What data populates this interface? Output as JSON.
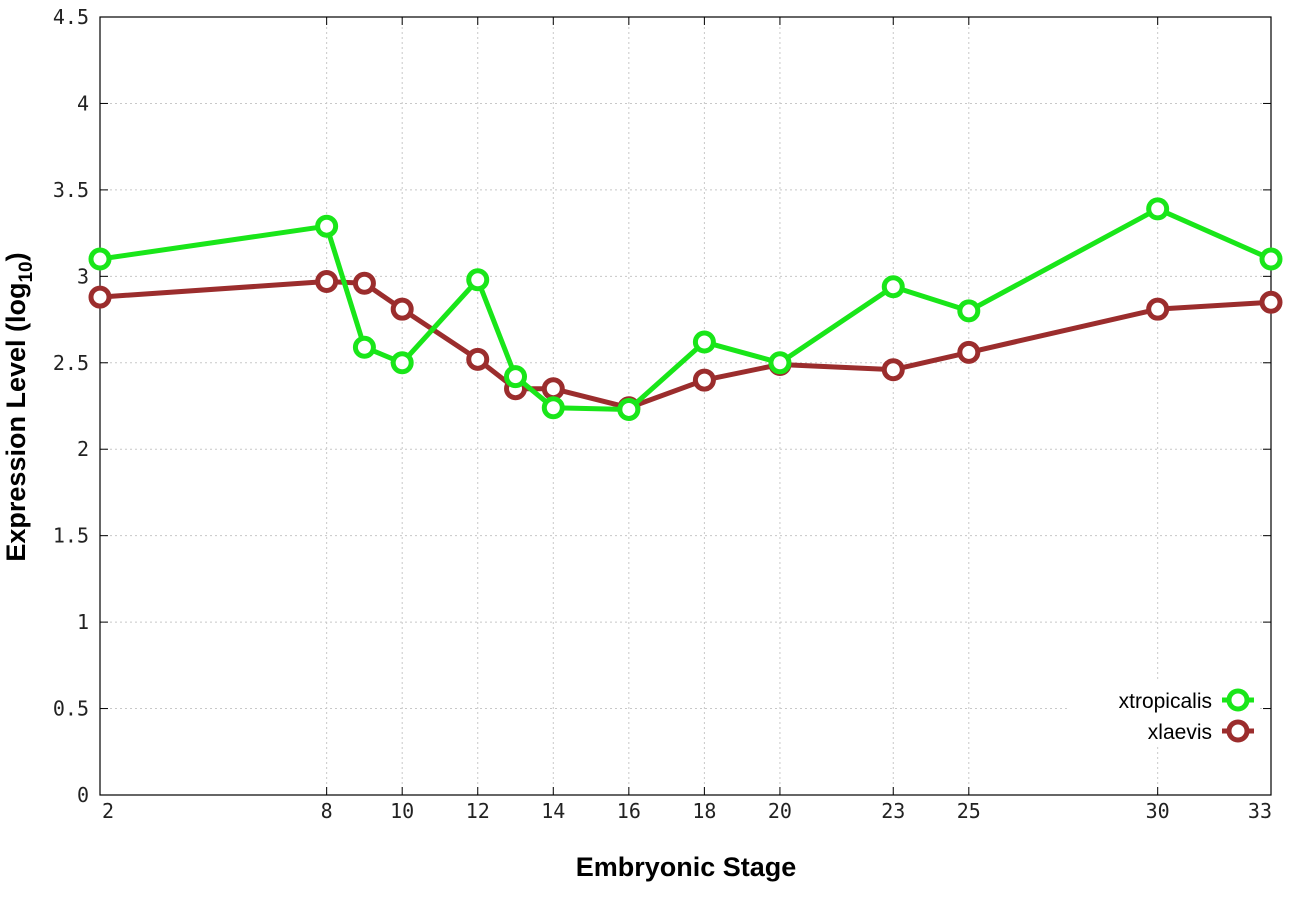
{
  "chart_data": {
    "type": "line",
    "xlabel": "Embryonic Stage",
    "ylabel": "Expression Level (log",
    "ylabel_subscript": "10",
    "ylabel_close": ")",
    "x_categories": [
      "2",
      "8",
      "9",
      "10",
      "12",
      "13",
      "14",
      "16",
      "18",
      "20",
      "23",
      "25",
      "30",
      "33"
    ],
    "x_tick_labels": [
      "2",
      "8",
      "10",
      "12",
      "14",
      "16",
      "18",
      "20",
      "23",
      "25",
      "30",
      "33"
    ],
    "y_ticks": [
      "0",
      "0.5",
      "1",
      "1.5",
      "2",
      "2.5",
      "3",
      "3.5",
      "4",
      "4.5"
    ],
    "ylim": [
      0,
      4.5
    ],
    "grid": true,
    "legend_position": "bottom-right",
    "series": [
      {
        "name": "xtropicalis",
        "color": "#19e619",
        "x": [
          2,
          8,
          9,
          10,
          12,
          13,
          14,
          16,
          18,
          20,
          23,
          25,
          30,
          33
        ],
        "values": [
          3.1,
          3.29,
          2.59,
          2.5,
          2.98,
          2.42,
          2.24,
          2.23,
          2.62,
          2.5,
          2.94,
          2.8,
          3.39,
          3.1
        ]
      },
      {
        "name": "xlaevis",
        "color": "#9b2d2d",
        "x": [
          2,
          8,
          9,
          10,
          12,
          13,
          14,
          16,
          18,
          20,
          23,
          25,
          30,
          33
        ],
        "values": [
          2.88,
          2.97,
          2.96,
          2.81,
          2.52,
          2.35,
          2.35,
          2.24,
          2.4,
          2.49,
          2.46,
          2.56,
          2.81,
          2.85
        ]
      }
    ]
  }
}
